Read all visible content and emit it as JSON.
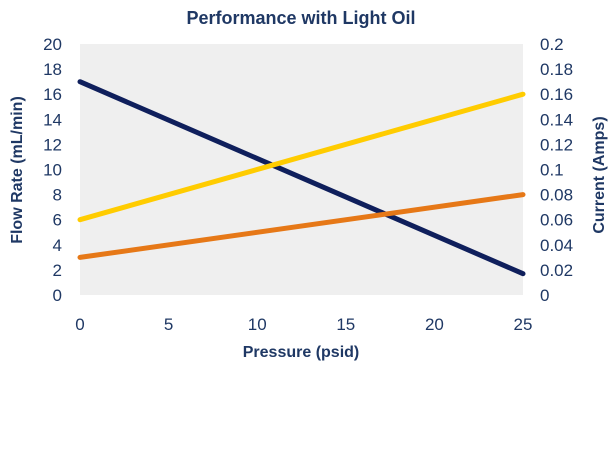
{
  "chart_data": {
    "type": "line",
    "title": "Performance with Light Oil",
    "xlabel": "Pressure (psid)",
    "ylabel": "Flow Rate (mL/min)",
    "y2label": "Current (Amps)",
    "xlim": [
      0,
      25
    ],
    "ylim": [
      0,
      20
    ],
    "y2lim": [
      0,
      0.2
    ],
    "x_ticks": [
      "0",
      "5",
      "10",
      "15",
      "20",
      "25"
    ],
    "y_ticks": [
      "0",
      "2",
      "4",
      "6",
      "8",
      "10",
      "12",
      "14",
      "16",
      "18",
      "20"
    ],
    "y2_ticks": [
      "0",
      "0.02",
      "0.04",
      "0.06",
      "0.08",
      "0.1",
      "0.12",
      "0.14",
      "0.16",
      "0.18",
      "0.2"
    ],
    "grid": false,
    "plot_background": "#efefef",
    "series": [
      {
        "axis": "left",
        "color": "#0f1f5c",
        "x": [
          0,
          25
        ],
        "y": [
          17,
          1.7
        ]
      },
      {
        "axis": "right",
        "color": "#ffcc00",
        "x": [
          0,
          25
        ],
        "y": [
          0.06,
          0.16
        ]
      },
      {
        "axis": "right",
        "color": "#e67817",
        "x": [
          0,
          25
        ],
        "y": [
          0.03,
          0.08
        ]
      }
    ]
  }
}
